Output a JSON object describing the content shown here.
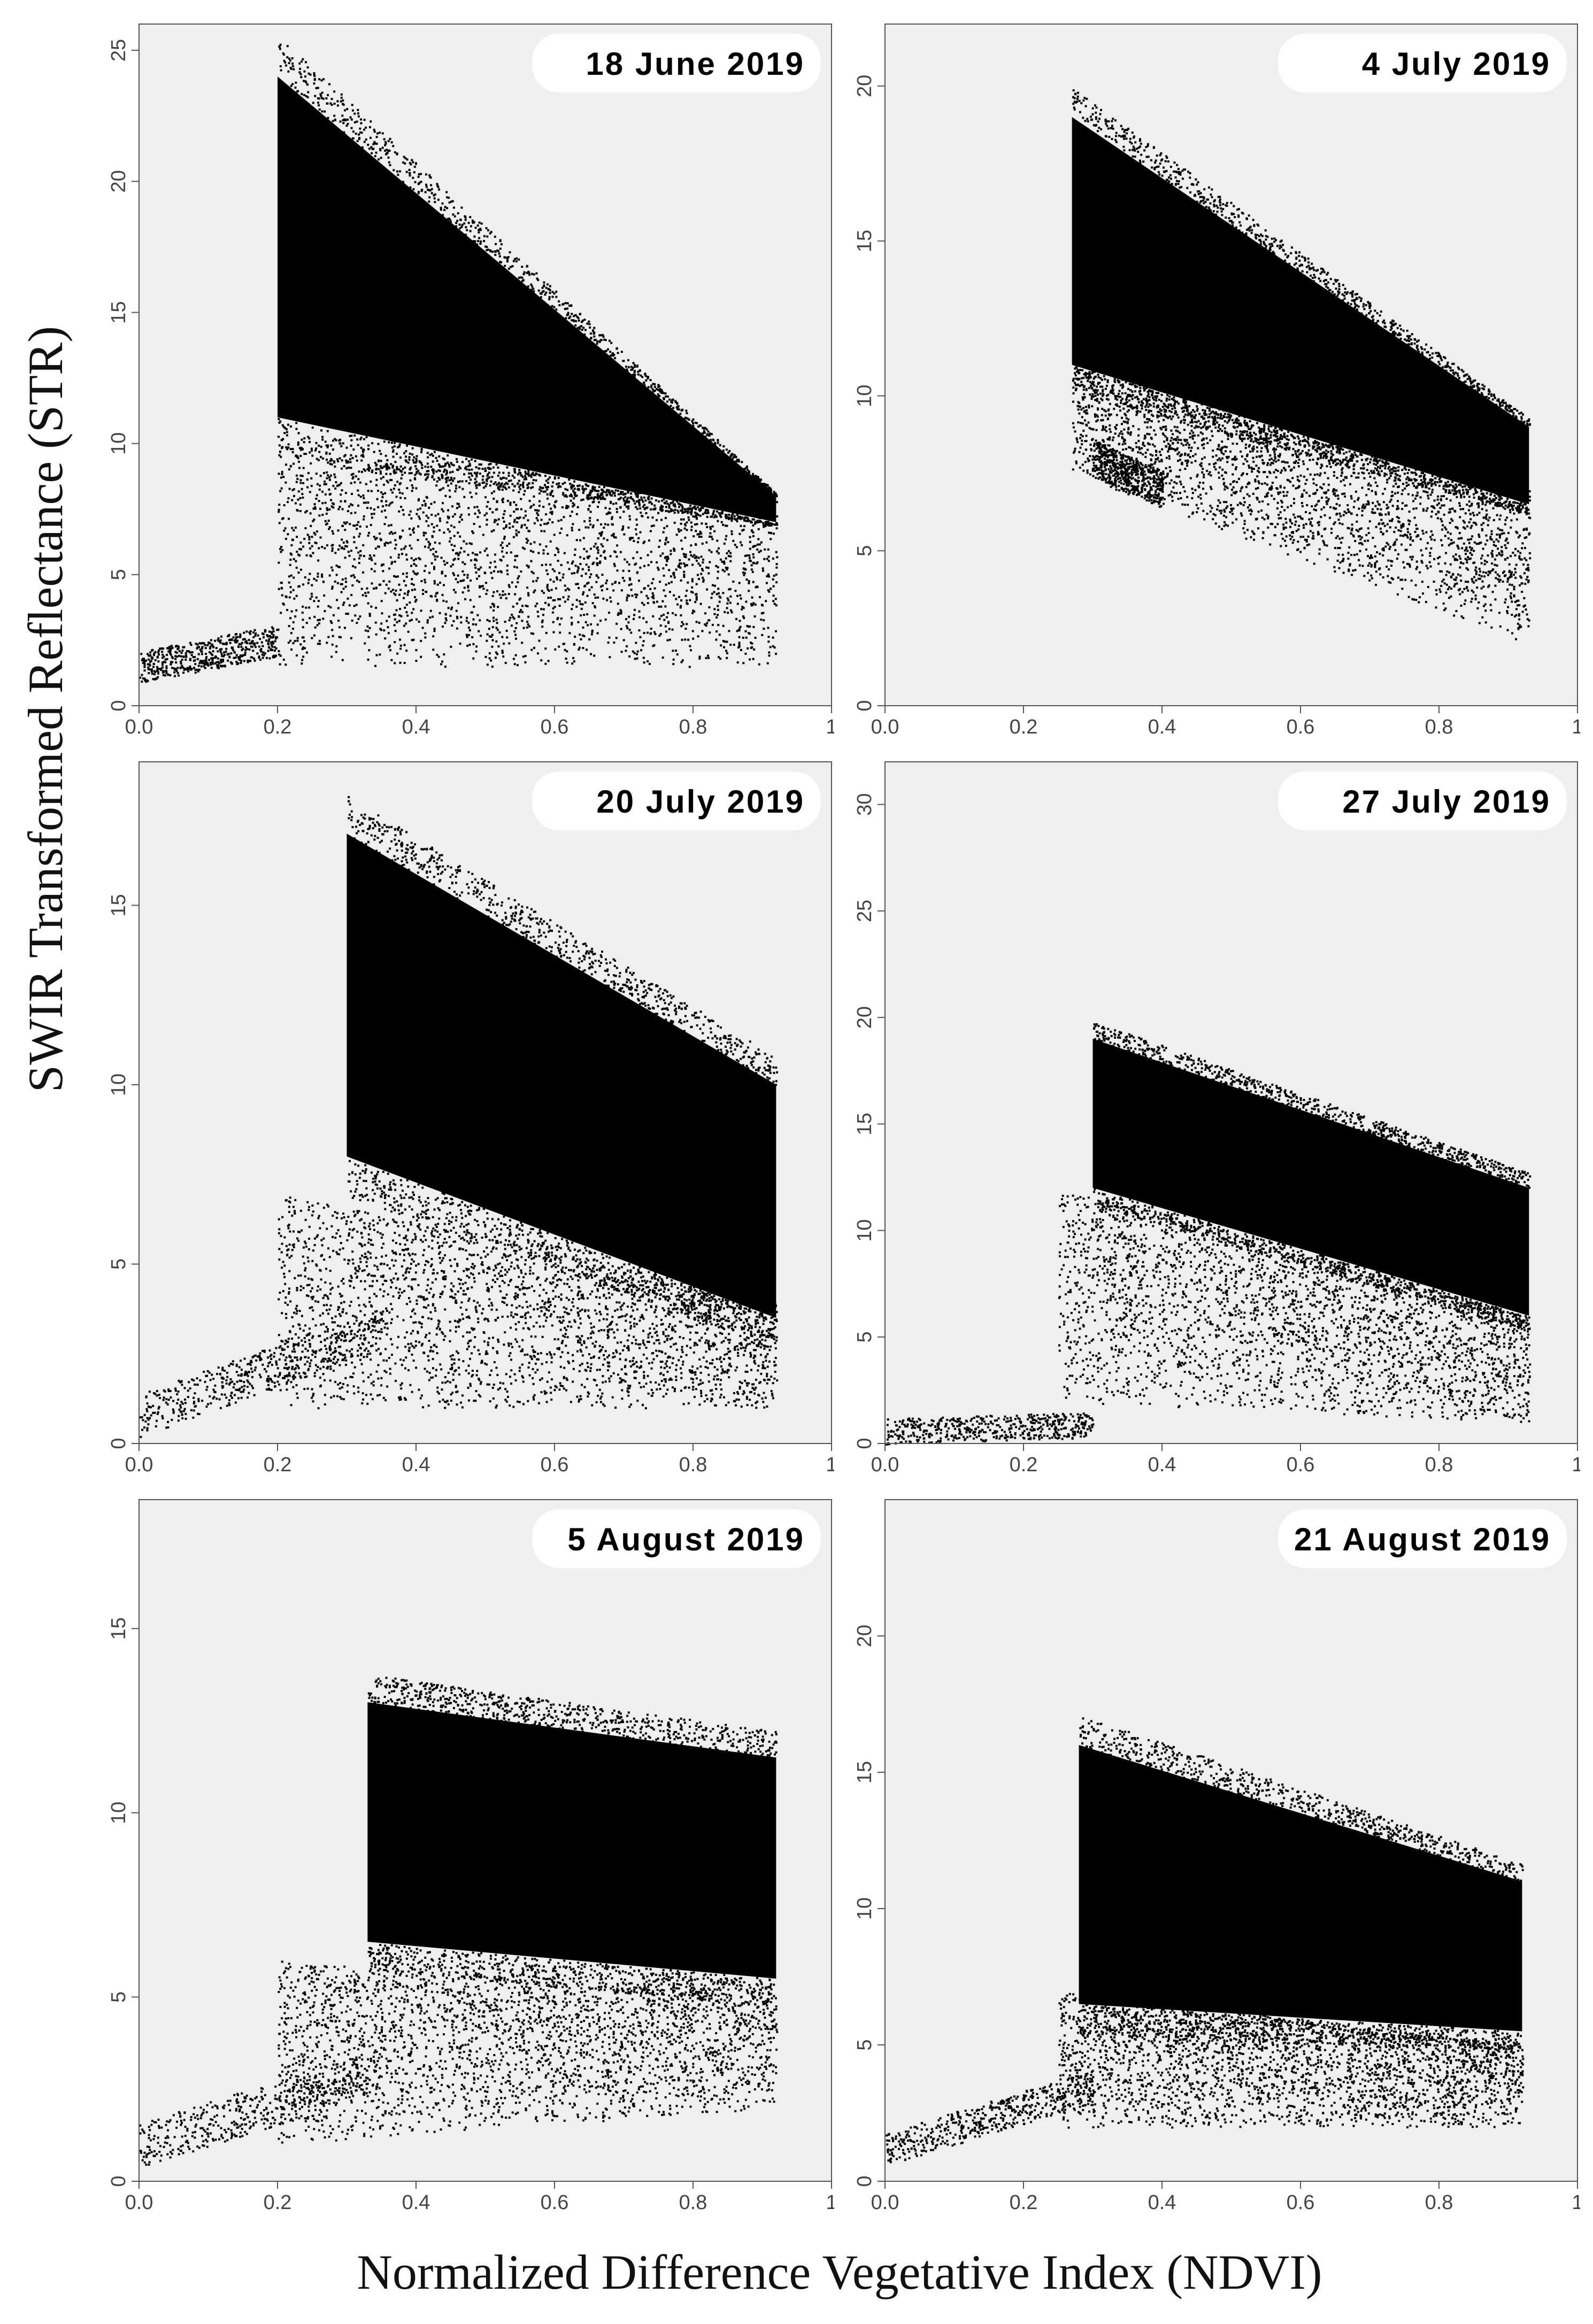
{
  "figure": {
    "ylabel": "SWIR Transformed Reflectance (STR)",
    "xlabel": "Normalized Difference Vegetative Index (NDVI)"
  },
  "colors": {
    "background": "#ffffff",
    "plot_bg": "#efefef",
    "points": "#000000",
    "axis": "#555555"
  },
  "chart_data": [
    {
      "type": "scatter",
      "title": "18 June 2019",
      "xlim": [
        0,
        1
      ],
      "ylim": [
        0,
        26
      ],
      "xticks": [
        "0.0",
        "0.2",
        "0.4",
        "0.6",
        "0.8",
        "1"
      ],
      "xtick_values": [
        0,
        0.2,
        0.4,
        0.6,
        0.8,
        1.0
      ],
      "yticks": [
        "0",
        "5",
        "10",
        "15",
        "20",
        "25"
      ],
      "ytick_values": [
        0,
        5,
        10,
        15,
        20,
        25
      ],
      "dense_band": {
        "x": [
          0.2,
          0.92
        ],
        "upper": [
          24,
          8
        ],
        "lower": [
          11,
          7
        ]
      },
      "scatter_cloud": {
        "x": [
          0.2,
          0.92
        ],
        "top": [
          10,
          8
        ],
        "bottom": [
          1.5,
          1.5
        ]
      },
      "soil_line": {
        "x": [
          0.0,
          0.2
        ],
        "y": [
          1.5,
          2.5
        ]
      }
    },
    {
      "type": "scatter",
      "title": "4 July 2019",
      "xlim": [
        0,
        1
      ],
      "ylim": [
        0,
        22
      ],
      "xticks": [
        "0.0",
        "0.2",
        "0.4",
        "0.6",
        "0.8",
        "1"
      ],
      "xtick_values": [
        0,
        0.2,
        0.4,
        0.6,
        0.8,
        1.0
      ],
      "yticks": [
        "0",
        "5",
        "10",
        "15",
        "20"
      ],
      "ytick_values": [
        0,
        5,
        10,
        15,
        20
      ],
      "dense_band": {
        "x": [
          0.27,
          0.93
        ],
        "upper": [
          19,
          9
        ],
        "lower": [
          11,
          6.5
        ]
      },
      "scatter_cloud": {
        "x": [
          0.27,
          0.93
        ],
        "top": [
          11,
          7
        ],
        "bottom": [
          7.5,
          2
        ]
      },
      "soil_line": {
        "x": [
          0.3,
          0.4
        ],
        "y": [
          8,
          7
        ]
      }
    },
    {
      "type": "scatter",
      "title": "20 July 2019",
      "xlim": [
        0,
        1
      ],
      "ylim": [
        0,
        19
      ],
      "xticks": [
        "0.0",
        "0.2",
        "0.4",
        "0.6",
        "0.8",
        "1"
      ],
      "xtick_values": [
        0,
        0.2,
        0.4,
        0.6,
        0.8,
        1.0
      ],
      "yticks": [
        "0",
        "5",
        "10",
        "15"
      ],
      "ytick_values": [
        0,
        5,
        10,
        15
      ],
      "dense_band": {
        "x": [
          0.3,
          0.92
        ],
        "upper": [
          17,
          10
        ],
        "lower": [
          8,
          3.5
        ]
      },
      "scatter_cloud": {
        "x": [
          0.2,
          0.92
        ],
        "top": [
          7,
          4
        ],
        "bottom": [
          1,
          1
        ]
      },
      "soil_line": {
        "x": [
          0.0,
          0.35
        ],
        "y": [
          0.8,
          3.2
        ]
      }
    },
    {
      "type": "scatter",
      "title": "27 July 2019",
      "xlim": [
        0,
        1
      ],
      "ylim": [
        0,
        32
      ],
      "xticks": [
        "0.0",
        "0.2",
        "0.4",
        "0.6",
        "0.8",
        "1"
      ],
      "xtick_values": [
        0,
        0.2,
        0.4,
        0.6,
        0.8,
        1.0
      ],
      "yticks": [
        "0",
        "5",
        "10",
        "15",
        "20",
        "25",
        "30"
      ],
      "ytick_values": [
        0,
        5,
        10,
        15,
        20,
        25,
        30
      ],
      "dense_band": {
        "x": [
          0.3,
          0.93
        ],
        "upper": [
          19,
          12
        ],
        "lower": [
          12,
          6
        ]
      },
      "scatter_cloud": {
        "x": [
          0.25,
          0.93
        ],
        "top": [
          12,
          6
        ],
        "bottom": [
          2,
          1
        ]
      },
      "soil_line": {
        "x": [
          0.0,
          0.3
        ],
        "y": [
          0.6,
          0.9
        ]
      }
    },
    {
      "type": "scatter",
      "title": "5 August 2019",
      "xlim": [
        0,
        1
      ],
      "ylim": [
        0,
        18.5
      ],
      "xticks": [
        "0.0",
        "0.2",
        "0.4",
        "0.6",
        "0.8",
        "1"
      ],
      "xtick_values": [
        0,
        0.2,
        0.4,
        0.6,
        0.8,
        1.0
      ],
      "yticks": [
        "0",
        "5",
        "10",
        "15"
      ],
      "ytick_values": [
        0,
        5,
        10,
        15
      ],
      "dense_band": {
        "x": [
          0.33,
          0.92
        ],
        "upper": [
          13,
          11.5
        ],
        "lower": [
          6.5,
          5.5
        ]
      },
      "scatter_cloud": {
        "x": [
          0.2,
          0.92
        ],
        "top": [
          6,
          5
        ],
        "bottom": [
          1,
          2
        ]
      },
      "soil_line": {
        "x": [
          0.0,
          0.35
        ],
        "y": [
          1.0,
          3.0
        ]
      }
    },
    {
      "type": "scatter",
      "title": "21 August 2019",
      "xlim": [
        0,
        1
      ],
      "ylim": [
        0,
        25
      ],
      "xticks": [
        "0.0",
        "0.2",
        "0.4",
        "0.6",
        "0.8",
        "1"
      ],
      "xtick_values": [
        0,
        0.2,
        0.4,
        0.6,
        0.8,
        1.0
      ],
      "yticks": [
        "0",
        "5",
        "10",
        "15",
        "20"
      ],
      "ytick_values": [
        0,
        5,
        10,
        15,
        20
      ],
      "dense_band": {
        "x": [
          0.28,
          0.92
        ],
        "upper": [
          16,
          11
        ],
        "lower": [
          6.5,
          5.5
        ]
      },
      "scatter_cloud": {
        "x": [
          0.25,
          0.92
        ],
        "top": [
          7,
          5
        ],
        "bottom": [
          2,
          2
        ]
      },
      "soil_line": {
        "x": [
          0.0,
          0.3
        ],
        "y": [
          1.2,
          3.5
        ]
      }
    }
  ]
}
